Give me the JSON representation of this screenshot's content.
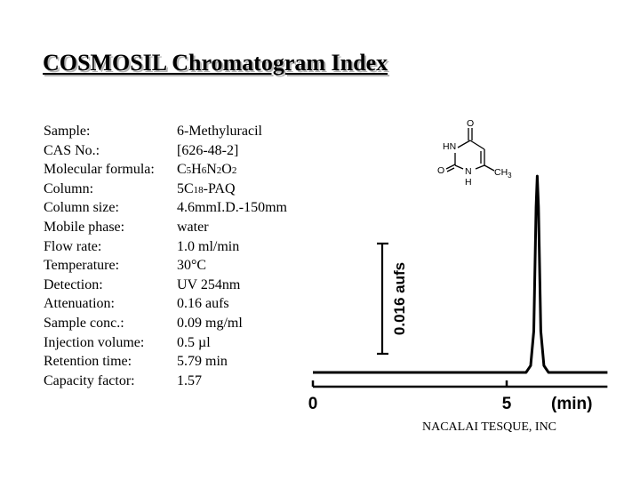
{
  "title": "COSMOSIL Chromatogram Index",
  "properties": [
    {
      "label": "Sample:",
      "value": "6-Methyluracil"
    },
    {
      "label": "CAS No.:",
      "value": "[626-48-2]"
    },
    {
      "label": "Molecular formula:",
      "value_parts": [
        "C",
        "5",
        "H",
        "6",
        "N",
        "2",
        "O",
        "2"
      ]
    },
    {
      "label": "Column:",
      "value_parts": [
        "5C",
        "18",
        "-PAQ"
      ]
    },
    {
      "label": "Column size:",
      "value": "4.6mmI.D.-150mm"
    },
    {
      "label": "Mobile phase:",
      "value": "water"
    },
    {
      "label": "Flow rate:",
      "value": "1.0 ml/min"
    },
    {
      "label": "Temperature:",
      "value": "30°C"
    },
    {
      "label": "Detection:",
      "value": "UV 254nm"
    },
    {
      "label": "Attenuation:",
      "value": "0.16 aufs"
    },
    {
      "label": "Sample conc.:",
      "value": "0.09 mg/ml"
    },
    {
      "label": "Injection volume:",
      "value": "0.5 µl"
    },
    {
      "label": "Retention time:",
      "value": "5.79 min"
    },
    {
      "label": "Capacity factor:",
      "value": "1.57"
    }
  ],
  "structure": {
    "atoms": {
      "o_top": "O",
      "hn": "HN",
      "o_left": "O",
      "n": "N",
      "h": "H",
      "ch3": "CH",
      "ch3_sub": "3"
    }
  },
  "chart_data": {
    "type": "line",
    "xlabel": "(min)",
    "x_ticks": [
      0,
      5
    ],
    "xlim": [
      0,
      7.6
    ],
    "scale_bar_label": "0.016 aufs",
    "series": [
      {
        "x": [
          0,
          5.5,
          5.62,
          5.7,
          5.76,
          5.79,
          5.82,
          5.88,
          5.96,
          6.08,
          7.6
        ],
        "y": [
          0,
          0,
          0.001,
          0.006,
          0.024,
          0.0285,
          0.024,
          0.006,
          0.001,
          0,
          0
        ]
      }
    ]
  },
  "footer": "NACALAI TESQUE, INC"
}
